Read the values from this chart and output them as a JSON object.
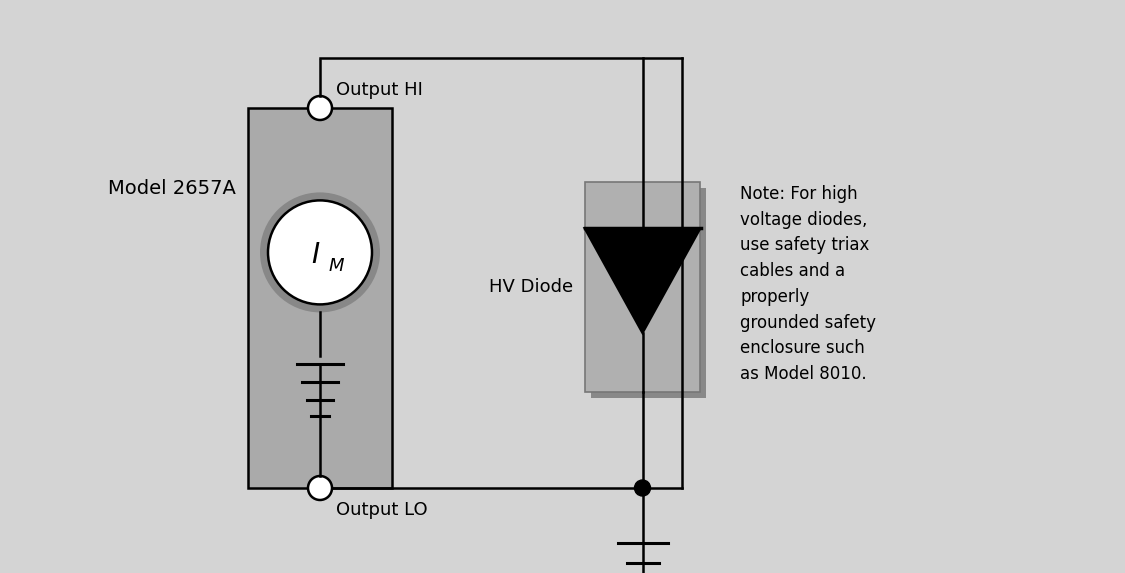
{
  "bg_color": "#d4d4d4",
  "box_color": "#aaaaaa",
  "diode_box_color": "#b0b0b0",
  "white": "#ffffff",
  "black": "#000000",
  "model_label": "Model 2657A",
  "output_hi_label": "Output HI",
  "output_lo_label": "Output LO",
  "hv_diode_label": "HV Diode",
  "im_label": "I",
  "im_subscript": "M",
  "note_text": "Note: For high\nvoltage diodes,\nuse safety triax\ncables and a\nproperly\ngrounded safety\nenclosure such\nas Model 8010.",
  "font_size_labels": 13,
  "font_size_note": 12,
  "font_size_model": 14,
  "font_size_im": 20
}
